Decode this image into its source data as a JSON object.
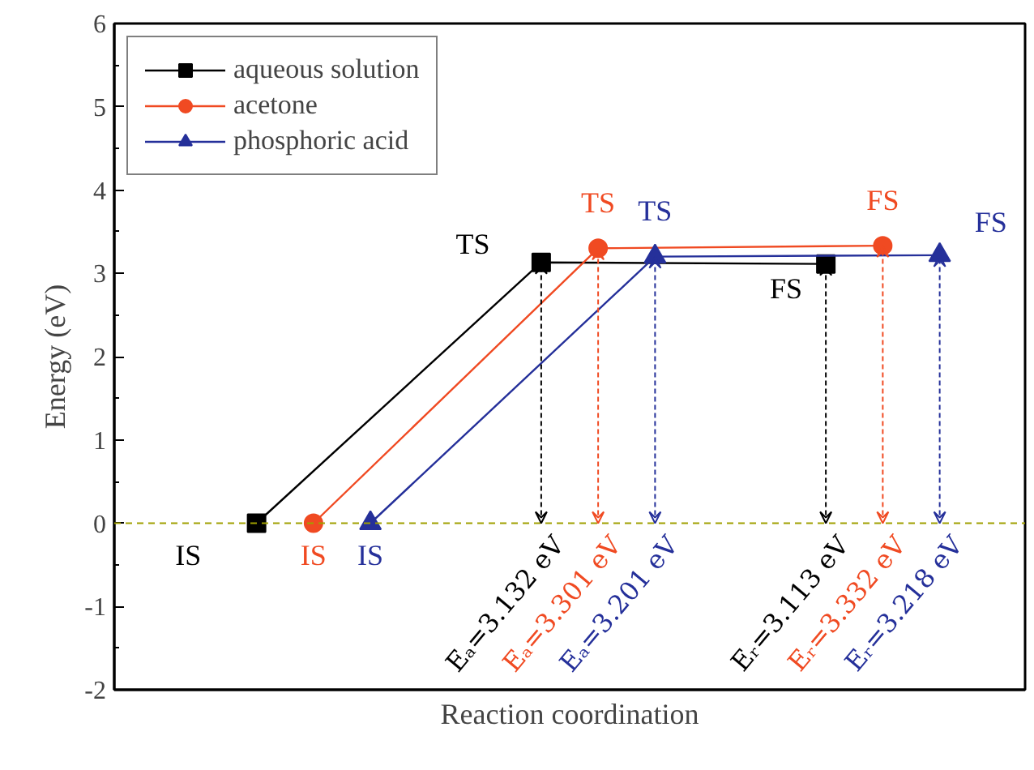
{
  "chart_data": {
    "type": "line",
    "xlabel": "Reaction coordination",
    "ylabel": "Energy (eV)",
    "ylim": [
      -2,
      6
    ],
    "yticks": [
      -2,
      -1,
      0,
      1,
      2,
      3,
      4,
      5,
      6
    ],
    "grid": false,
    "legend": "top left",
    "line_style": "solid",
    "categories": [
      null,
      null,
      null,
      null,
      null,
      null,
      null,
      null,
      null,
      null,
      null,
      null,
      null,
      null,
      null,
      null
    ],
    "ref_lines": [
      {
        "axis": "y",
        "value": 0,
        "color": "#a0a000",
        "line_style": "dashed"
      }
    ],
    "annotations": [
      "IS",
      "TS",
      "FS",
      "IS",
      "TS",
      "FS",
      "IS",
      "TS",
      "FS",
      "Eₐ=3.132 eV",
      "Eᵣ=3.113 eV",
      "Eₐ=3.301 eV",
      "Eᵣ=3.332 eV",
      "Eₐ=3.201 eV",
      "Eᵣ=3.218 eV"
    ],
    "series": [
      {
        "name": "aqueous solution",
        "color": "#000000",
        "marker": "square",
        "values": [
          null,
          null,
          0,
          null,
          null,
          null,
          null,
          3.132,
          null,
          null,
          null,
          null,
          3.113,
          null,
          null,
          null
        ]
      },
      {
        "name": "acetone",
        "color": "#f04a22",
        "marker": "circle",
        "values": [
          null,
          null,
          null,
          0,
          null,
          null,
          null,
          null,
          3.301,
          null,
          null,
          null,
          null,
          3.332,
          null,
          null
        ]
      },
      {
        "name": "phosphoric acid",
        "color": "#25309a",
        "marker": "triangle",
        "values": [
          null,
          null,
          null,
          null,
          0,
          null,
          null,
          null,
          null,
          3.201,
          null,
          null,
          null,
          null,
          3.218,
          null
        ]
      }
    ]
  }
}
